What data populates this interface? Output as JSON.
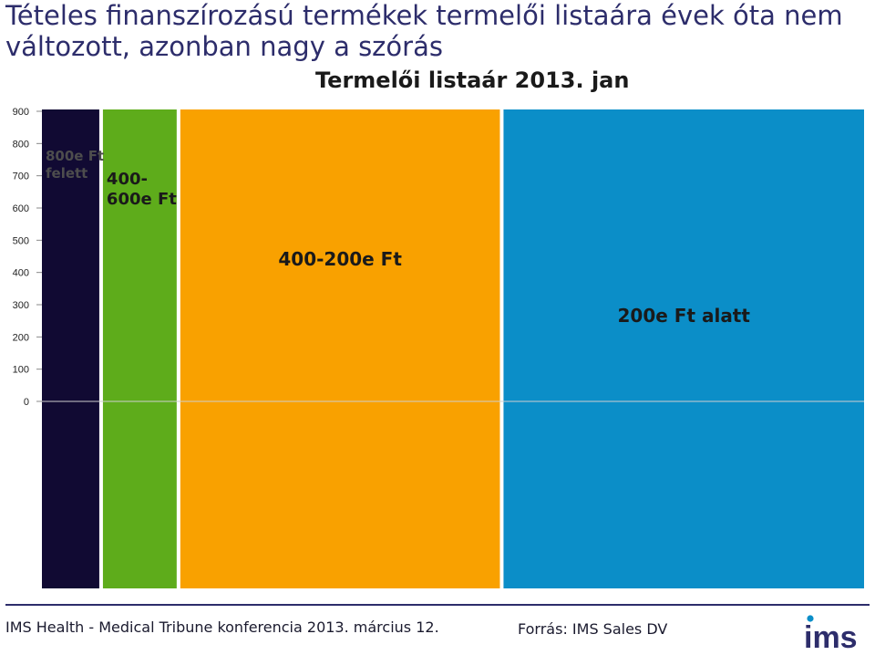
{
  "slide": {
    "title_line1": "Tételes finanszírozású termékek termelői listaára évek óta nem",
    "title_line2": "változott, azonban nagy a szórás"
  },
  "footer": {
    "left": "IMS Health - Medical Tribune konferencia 2013. március 12.",
    "right": "Forrás: IMS Sales DV",
    "logo": "ims"
  },
  "colors": {
    "title": "#2d2d6b",
    "seg1": "#110a33",
    "seg2": "#5eac1b",
    "seg3": "#f9a100",
    "seg4": "#0b8ec8"
  },
  "chart_data": {
    "type": "bar",
    "title": "Termelői listaár 2013. jan",
    "xlabel": "",
    "ylabel": "",
    "ylim": [
      0,
      900
    ],
    "yticks": [
      0,
      100,
      200,
      300,
      400,
      500,
      600,
      700,
      800,
      900
    ],
    "grid": false,
    "categories": [
      "800e Ft\nfelett",
      "400-\n600e Ft",
      "400-200e Ft",
      "200e Ft alatt"
    ],
    "category_labels": [
      [
        "800e Ft",
        "felett"
      ],
      [
        "400-",
        "600e Ft"
      ],
      [
        "400-200e Ft"
      ],
      [
        "200e Ft alatt"
      ]
    ],
    "relative_widths": [
      0.07,
      0.09,
      0.39,
      0.44
    ],
    "values": [
      900,
      900,
      900,
      900
    ]
  }
}
